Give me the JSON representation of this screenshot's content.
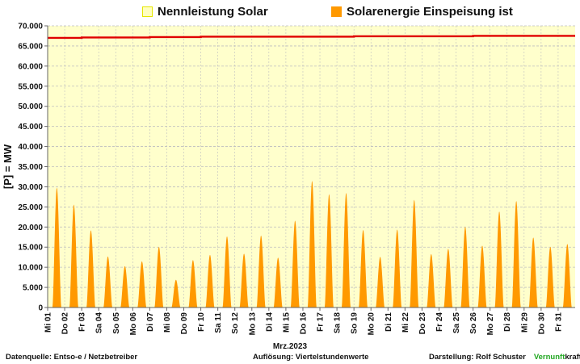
{
  "legend": [
    {
      "label": "Nennleistung Solar",
      "color": "#ffffbf",
      "border": "#e6e600"
    },
    {
      "label": "Solarenergie Einspeisung ist",
      "color": "#ff9900",
      "border": "#ff9900"
    }
  ],
  "colors": {
    "plot_background": "#ffffcc",
    "capacity_line": "#e00000",
    "solar_fill": "#ff9900",
    "grid": "#bfbfbf",
    "footer_accent": "#22a722"
  },
  "footer": {
    "source": "Datenquelle:  Entso-e  / Netzbetreiber",
    "resolution": "Auflösung: Viertelstundenwerte",
    "author_prefix": "Darstellung:  Rolf Schuster",
    "brand_green": "Vernunft",
    "brand_rest": "kraft"
  },
  "chart_data": {
    "type": "area",
    "title": "",
    "xlabel": "Mrz.2023",
    "ylabel": "[P]  =  MW",
    "ylim": [
      0,
      70000
    ],
    "y_ticks": [
      "0",
      "5.000",
      "10.000",
      "15.000",
      "20.000",
      "25.000",
      "30.000",
      "35.000",
      "40.000",
      "45.000",
      "50.000",
      "55.000",
      "60.000",
      "65.000",
      "70.000"
    ],
    "grid": true,
    "legend_position": "top",
    "categories": [
      "Mi 01",
      "Do 02",
      "Fr 03",
      "Sa 04",
      "So 05",
      "Mo 06",
      "Di 07",
      "Mi 08",
      "Do 09",
      "Fr 10",
      "Sa 11",
      "So 12",
      "Mo 13",
      "Di 14",
      "Mi 15",
      "Do 16",
      "Fr 17",
      "Sa 18",
      "So 19",
      "Mo 20",
      "Di 21",
      "Mi 22",
      "Do 23",
      "Fr 24",
      "Sa 25",
      "So 26",
      "Mo 27",
      "Di 28",
      "Mi 29",
      "Do 30",
      "Fr 31"
    ],
    "series": [
      {
        "name": "Nennleistung Solar",
        "values": [
          67000,
          67000,
          67100,
          67100,
          67100,
          67100,
          67200,
          67200,
          67200,
          67300,
          67300,
          67300,
          67300,
          67300,
          67300,
          67300,
          67300,
          67300,
          67400,
          67400,
          67400,
          67400,
          67400,
          67400,
          67400,
          67500,
          67500,
          67500,
          67500,
          67500,
          67500
        ]
      },
      {
        "name": "Solarenergie Einspeisung ist",
        "values": [
          29800,
          25600,
          19200,
          12700,
          10300,
          11500,
          15100,
          6900,
          11800,
          13100,
          17700,
          13400,
          17900,
          12400,
          21600,
          31500,
          28200,
          28500,
          19300,
          12600,
          19400,
          26800,
          13300,
          14600,
          20100,
          15400,
          23900,
          26500,
          17400,
          15100,
          15800
        ]
      }
    ]
  }
}
